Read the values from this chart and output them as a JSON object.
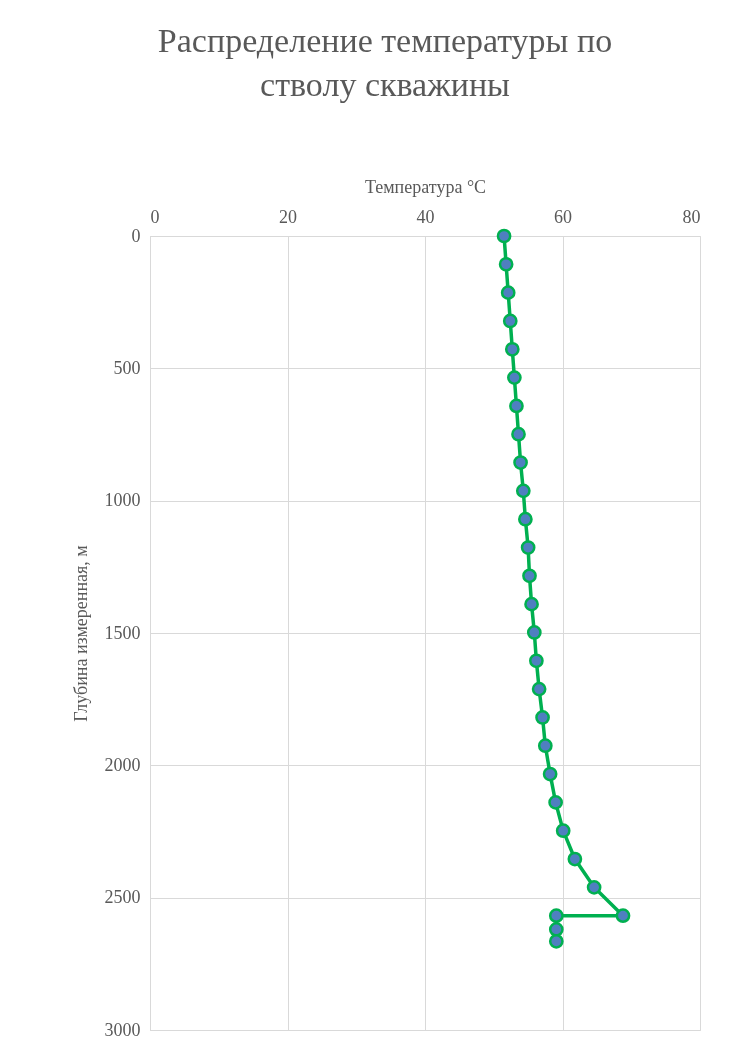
{
  "chart_data": {
    "type": "line",
    "title": "Распределение температуры по стволу скважины",
    "xlabel": "Температура °C",
    "ylabel": "Глубина измеренная, м",
    "x": [
      51.5,
      51.8,
      52.1,
      52.4,
      52.7,
      53.0,
      53.3,
      53.6,
      53.9,
      54.3,
      54.6,
      55.0,
      55.2,
      55.5,
      55.9,
      56.2,
      56.6,
      57.1,
      57.5,
      58.2,
      59.0,
      60.1,
      61.8,
      64.6,
      68.8,
      59.1,
      59.1,
      59.1
    ],
    "series": [
      {
        "color": "#00b050",
        "values": [
          0,
          107,
          214,
          321,
          428,
          535,
          642,
          749,
          856,
          963,
          1070,
          1177,
          1284,
          1391,
          1498,
          1605,
          1712,
          1819,
          1926,
          2033,
          2140,
          2247,
          2354,
          2461,
          2568,
          2568,
          2620,
          2665
        ]
      }
    ],
    "xlim": [
      0,
      80
    ],
    "xticks": [
      0,
      20,
      40,
      60,
      80
    ],
    "ylim": [
      3000,
      0
    ],
    "yticks": [
      0,
      500,
      1000,
      1500,
      2000,
      2500,
      3000
    ],
    "grid": true,
    "marker": "circle",
    "line_style": "solid"
  }
}
